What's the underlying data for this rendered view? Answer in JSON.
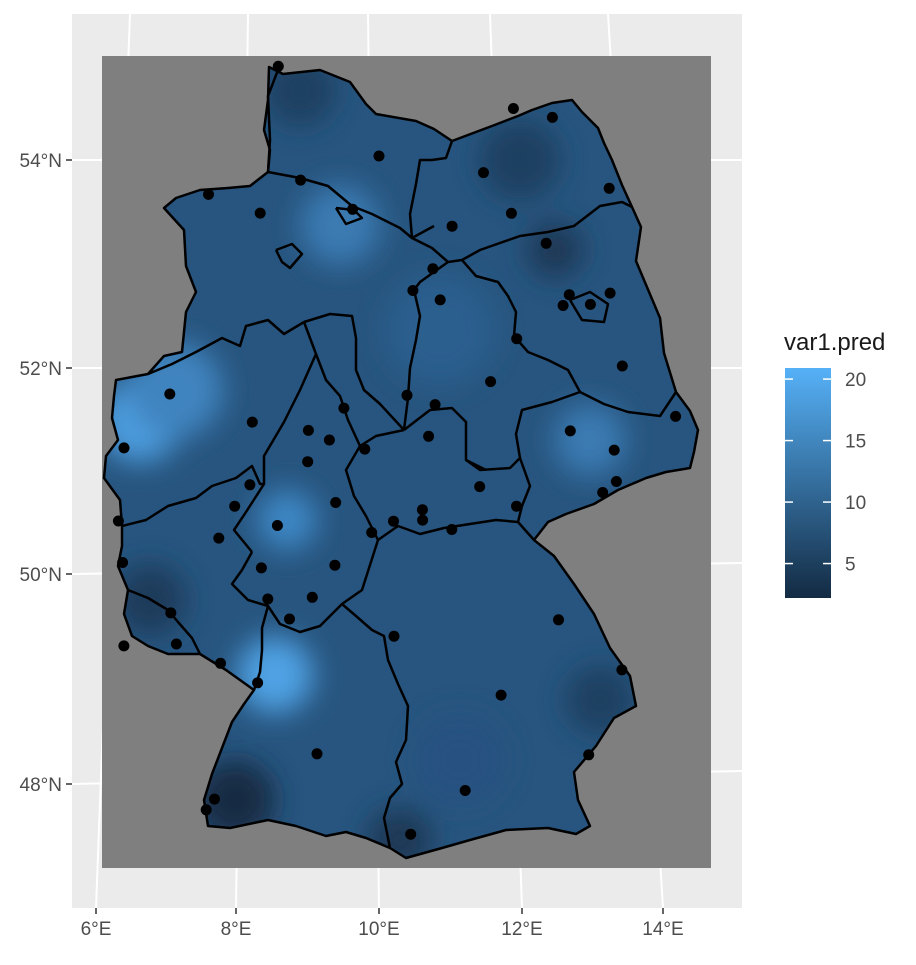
{
  "map": {
    "x_ticks": [
      "6°E",
      "8°E",
      "10°E",
      "12°E",
      "14°E"
    ],
    "y_ticks": [
      "48°N",
      "50°N",
      "52°N",
      "54°N"
    ],
    "x_tick_values": [
      6,
      8,
      10,
      12,
      14
    ],
    "y_tick_values": [
      48,
      50,
      52,
      54
    ]
  },
  "legend": {
    "title": "var1.pred",
    "labels": [
      "20",
      "15",
      "10",
      "5"
    ],
    "values": [
      20,
      15,
      10,
      5
    ],
    "range": [
      2.2,
      20.9
    ],
    "colors": {
      "low": "#132b43",
      "high": "#56b1f7"
    }
  },
  "colors": {
    "panel": "#ebebeb",
    "grid": "#ffffff",
    "raster_background": "#7f7f7f",
    "border": "#000000",
    "station": "#000000"
  },
  "stations": [
    {
      "lon": 8.4,
      "lat": 54.9
    },
    {
      "lon": 10.0,
      "lat": 54.0
    },
    {
      "lon": 7.4,
      "lat": 53.7
    },
    {
      "lon": 8.8,
      "lat": 53.8
    },
    {
      "lon": 8.2,
      "lat": 53.5
    },
    {
      "lon": 9.6,
      "lat": 53.5
    },
    {
      "lon": 11.6,
      "lat": 53.8
    },
    {
      "lon": 12.1,
      "lat": 54.4
    },
    {
      "lon": 12.7,
      "lat": 54.3
    },
    {
      "lon": 13.5,
      "lat": 53.6
    },
    {
      "lon": 12.0,
      "lat": 53.4
    },
    {
      "lon": 11.1,
      "lat": 53.3
    },
    {
      "lon": 12.5,
      "lat": 53.1
    },
    {
      "lon": 10.8,
      "lat": 52.9
    },
    {
      "lon": 10.5,
      "lat": 52.7
    },
    {
      "lon": 10.9,
      "lat": 52.6
    },
    {
      "lon": 12.8,
      "lat": 52.6
    },
    {
      "lon": 12.7,
      "lat": 52.5
    },
    {
      "lon": 13.1,
      "lat": 52.5
    },
    {
      "lon": 13.4,
      "lat": 52.6
    },
    {
      "lon": 12.0,
      "lat": 52.2
    },
    {
      "lon": 13.5,
      "lat": 51.9
    },
    {
      "lon": 7.0,
      "lat": 51.8
    },
    {
      "lon": 11.6,
      "lat": 51.8
    },
    {
      "lon": 10.4,
      "lat": 51.7
    },
    {
      "lon": 9.5,
      "lat": 51.6
    },
    {
      "lon": 10.8,
      "lat": 51.6
    },
    {
      "lon": 8.2,
      "lat": 51.5
    },
    {
      "lon": 6.4,
      "lat": 51.3
    },
    {
      "lon": 9.0,
      "lat": 51.4
    },
    {
      "lon": 9.3,
      "lat": 51.3
    },
    {
      "lon": 9.8,
      "lat": 51.2
    },
    {
      "lon": 10.7,
      "lat": 51.3
    },
    {
      "lon": 12.7,
      "lat": 51.3
    },
    {
      "lon": 14.2,
      "lat": 51.4
    },
    {
      "lon": 13.3,
      "lat": 51.1
    },
    {
      "lon": 9.0,
      "lat": 51.1
    },
    {
      "lon": 8.2,
      "lat": 50.9
    },
    {
      "lon": 8.0,
      "lat": 50.7
    },
    {
      "lon": 9.4,
      "lat": 50.7
    },
    {
      "lon": 11.4,
      "lat": 50.8
    },
    {
      "lon": 13.3,
      "lat": 50.8
    },
    {
      "lon": 13.1,
      "lat": 50.7
    },
    {
      "lon": 6.4,
      "lat": 50.6
    },
    {
      "lon": 10.6,
      "lat": 50.6
    },
    {
      "lon": 10.6,
      "lat": 50.5
    },
    {
      "lon": 11.9,
      "lat": 50.6
    },
    {
      "lon": 8.6,
      "lat": 50.5
    },
    {
      "lon": 10.2,
      "lat": 50.5
    },
    {
      "lon": 9.9,
      "lat": 50.4
    },
    {
      "lon": 11.0,
      "lat": 50.4
    },
    {
      "lon": 7.8,
      "lat": 50.4
    },
    {
      "lon": 6.5,
      "lat": 50.2
    },
    {
      "lon": 8.4,
      "lat": 50.1
    },
    {
      "lon": 9.4,
      "lat": 50.1
    },
    {
      "lon": 8.5,
      "lat": 49.8
    },
    {
      "lon": 9.1,
      "lat": 49.8
    },
    {
      "lon": 7.2,
      "lat": 49.7
    },
    {
      "lon": 8.8,
      "lat": 49.6
    },
    {
      "lon": 6.6,
      "lat": 49.4
    },
    {
      "lon": 7.3,
      "lat": 49.4
    },
    {
      "lon": 10.2,
      "lat": 49.4
    },
    {
      "lon": 12.4,
      "lat": 49.5
    },
    {
      "lon": 7.9,
      "lat": 49.2
    },
    {
      "lon": 8.4,
      "lat": 49.0
    },
    {
      "lon": 13.2,
      "lat": 49.0
    },
    {
      "lon": 11.6,
      "lat": 48.8
    },
    {
      "lon": 9.2,
      "lat": 48.3
    },
    {
      "lon": 12.7,
      "lat": 48.2
    },
    {
      "lon": 7.8,
      "lat": 47.8
    },
    {
      "lon": 7.9,
      "lat": 47.9
    },
    {
      "lon": 11.1,
      "lat": 47.9
    },
    {
      "lon": 10.4,
      "lat": 47.5
    }
  ]
}
